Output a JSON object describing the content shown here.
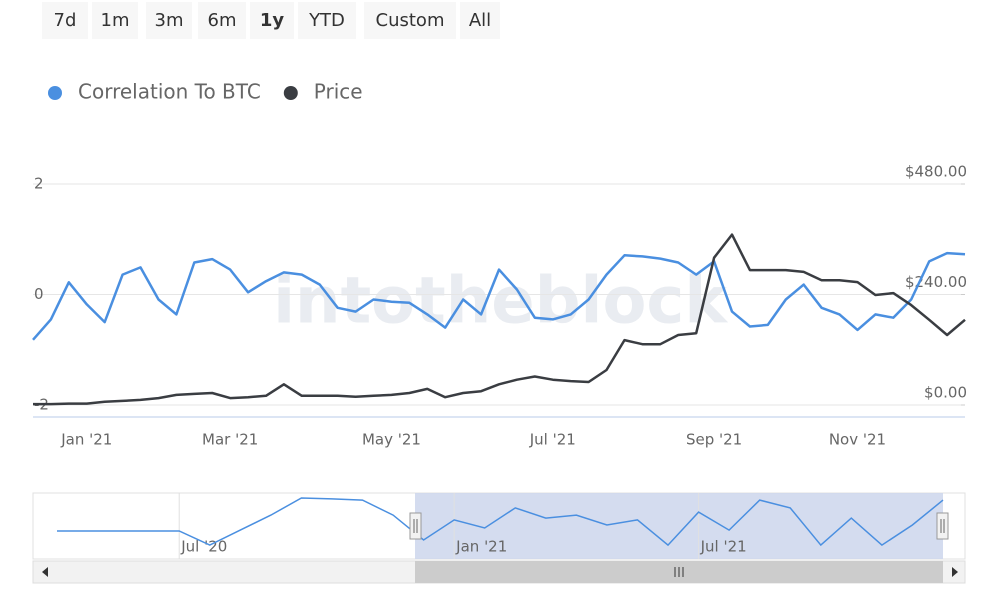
{
  "range_selector": {
    "buttons": [
      "7d",
      "1m",
      "3m",
      "6m",
      "1y",
      "YTD",
      "Custom",
      "All"
    ],
    "selected_index": 4
  },
  "chart_data": {
    "type": "line",
    "watermark": "intotheblock",
    "categories": [
      null,
      null,
      null,
      "Jan '21",
      null,
      null,
      null,
      null,
      null,
      null,
      null,
      "Mar '21",
      null,
      null,
      null,
      null,
      null,
      null,
      null,
      null,
      "May '21",
      null,
      null,
      null,
      null,
      null,
      null,
      null,
      null,
      "Jul '21",
      null,
      null,
      null,
      null,
      null,
      null,
      null,
      null,
      "Sep '21",
      null,
      null,
      null,
      null,
      null,
      null,
      null,
      "Nov '21",
      null,
      null,
      null,
      null,
      null,
      null
    ],
    "series": [
      {
        "name": "Correlation To BTC",
        "color": "#4a8fe0",
        "axis": "y",
        "values": [
          -0.82,
          -0.45,
          0.22,
          -0.18,
          -0.5,
          0.36,
          0.49,
          -0.09,
          -0.36,
          0.58,
          0.64,
          0.45,
          0.04,
          0.24,
          0.4,
          0.36,
          0.18,
          -0.24,
          -0.31,
          -0.09,
          -0.13,
          -0.15,
          -0.36,
          -0.6,
          -0.09,
          -0.36,
          0.45,
          0.09,
          -0.42,
          -0.45,
          -0.36,
          -0.09,
          0.36,
          0.71,
          0.69,
          0.65,
          0.58,
          0.36,
          0.6,
          -0.31,
          -0.58,
          -0.55,
          -0.09,
          0.18,
          -0.24,
          -0.36,
          -0.64,
          -0.36,
          -0.42,
          -0.09,
          0.6,
          0.75,
          0.73
        ]
      },
      {
        "name": "Price",
        "color": "#3a3d42",
        "axis": "y2",
        "values": [
          2,
          2,
          3,
          3,
          7,
          9,
          11,
          15,
          22,
          24,
          26,
          15,
          17,
          20,
          45,
          20,
          20,
          20,
          18,
          20,
          22,
          26,
          35,
          17,
          26,
          30,
          45,
          55,
          62,
          55,
          52,
          50,
          76,
          141,
          132,
          132,
          152,
          156,
          320,
          370,
          293,
          293,
          293,
          289,
          271,
          271,
          267,
          239,
          243,
          217,
          185,
          152,
          185
        ]
      }
    ],
    "ylim": [
      -2,
      2
    ],
    "yticks": [
      -2,
      0,
      2
    ],
    "y2lim": [
      0,
      480
    ],
    "y2ticks": [
      {
        "value": 0,
        "label": "$0.00"
      },
      {
        "value": 240,
        "label": "$240.00"
      },
      {
        "value": 480,
        "label": "$480.00"
      }
    ],
    "grid": true,
    "legend": "top-left",
    "navigator": {
      "color": "#4a8fe0",
      "ylim": [
        -1,
        1
      ],
      "categories": [
        null,
        null,
        null,
        null,
        "Jul '20",
        null,
        null,
        null,
        null,
        null,
        null,
        null,
        null,
        "Jan '21",
        null,
        null,
        null,
        null,
        null,
        null,
        null,
        "Jul '21",
        null,
        null,
        null,
        null,
        null,
        null,
        null,
        null
      ],
      "values": [
        -0.2,
        -0.2,
        -0.2,
        -0.2,
        -0.2,
        -0.67,
        -0.17,
        0.33,
        0.9,
        0.87,
        0.83,
        0.33,
        -0.5,
        0.17,
        -0.1,
        0.57,
        0.23,
        0.33,
        0,
        0.17,
        -0.67,
        0.43,
        -0.17,
        0.83,
        0.57,
        -0.67,
        0.23,
        -0.67,
        0,
        0.83
      ]
    }
  }
}
